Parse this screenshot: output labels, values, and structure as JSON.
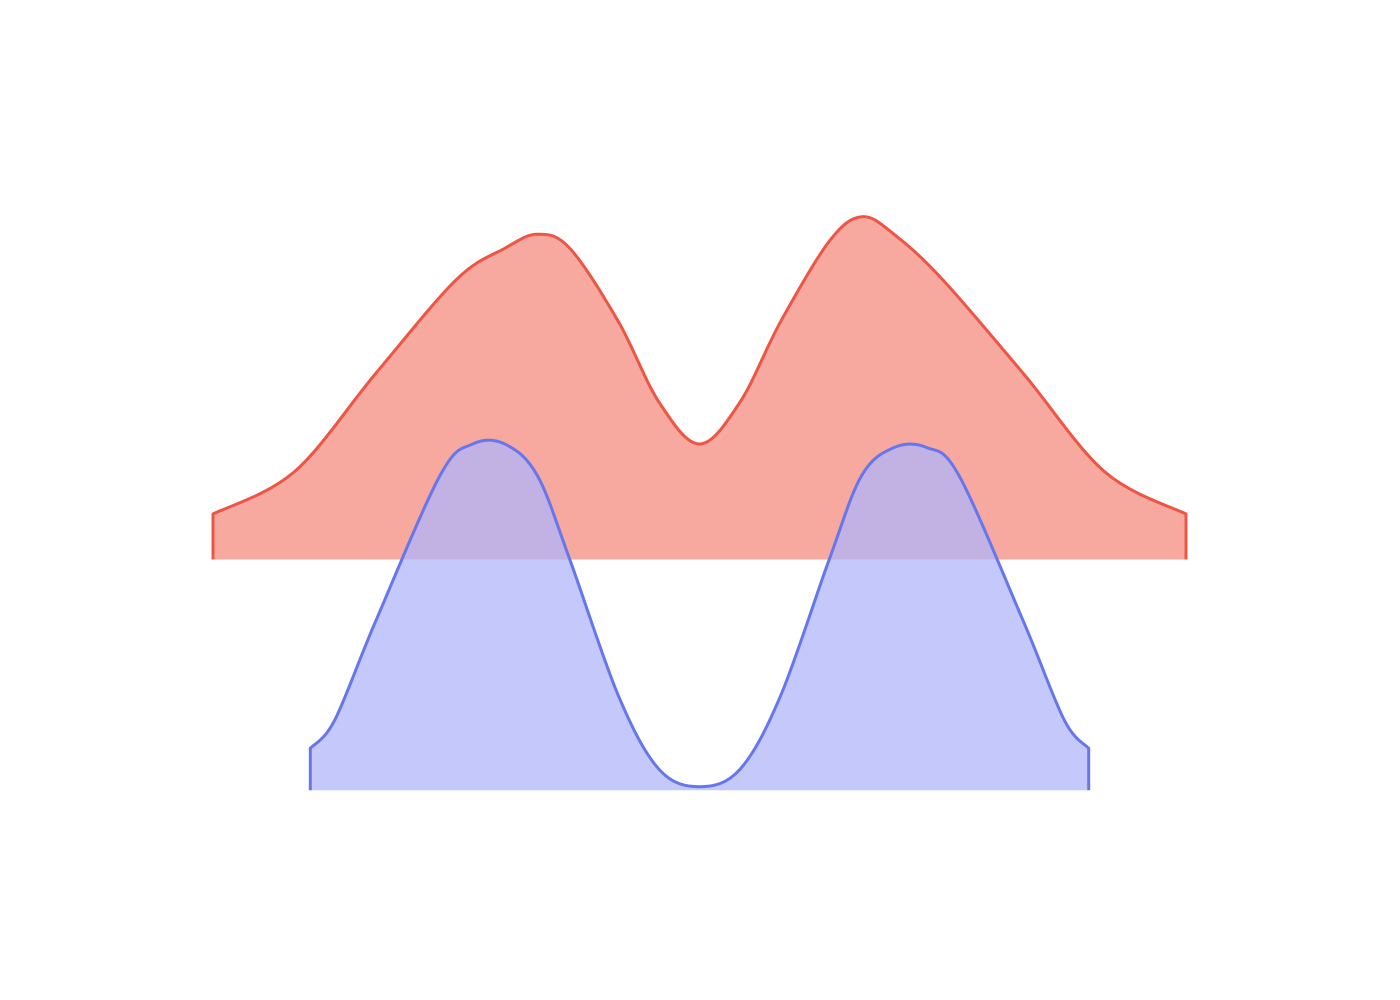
{
  "chart_data": {
    "type": "area",
    "title": "",
    "xlabel": "",
    "ylabel": "",
    "grid": false,
    "legend": "none",
    "axes_visible": false,
    "series": [
      {
        "color": "#ee5544",
        "fill_color": "#f8a99f",
        "baseline": 0,
        "x": [
          -3.0,
          -2.5,
          -2.0,
          -1.5,
          -1.2,
          -1.0,
          -0.8,
          -0.5,
          -0.25,
          0.0,
          0.25,
          0.5,
          0.8,
          1.0,
          1.2,
          1.5,
          2.0,
          2.5,
          3.0
        ],
        "y": [
          0.13,
          0.25,
          0.53,
          0.8,
          0.89,
          0.93,
          0.89,
          0.68,
          0.45,
          0.33,
          0.45,
          0.68,
          0.91,
          0.98,
          0.93,
          0.8,
          0.53,
          0.25,
          0.13
        ]
      },
      {
        "color": "#6677ee",
        "fill_color": "#b0b6fa",
        "baseline": -0.66,
        "x": [
          -2.4,
          -2.25,
          -2.0,
          -1.6,
          -1.4,
          -1.2,
          -1.0,
          -0.8,
          -0.5,
          -0.25,
          0.0,
          0.25,
          0.5,
          0.8,
          1.0,
          1.2,
          1.4,
          1.6,
          2.0,
          2.25,
          2.4
        ],
        "y": [
          -0.54,
          -0.46,
          -0.18,
          0.24,
          0.33,
          0.33,
          0.24,
          0.0,
          -0.39,
          -0.6,
          -0.65,
          -0.6,
          -0.39,
          0.0,
          0.24,
          0.32,
          0.32,
          0.24,
          -0.18,
          -0.46,
          -0.54
        ]
      }
    ],
    "xlim": [
      -3.0,
      3.0
    ],
    "ylim": [
      -1.26,
      1.6
    ]
  }
}
